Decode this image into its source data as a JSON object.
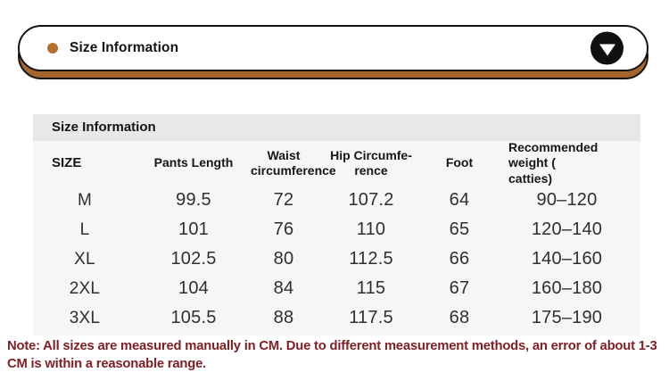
{
  "banner": {
    "title": "Size Information"
  },
  "table": {
    "section_title": "Size Information",
    "columns": {
      "size": "SIZE",
      "pants_length": "Pants Length",
      "waist": "Waist\ncircumference",
      "hip": "Hip Circumfe-\nrence",
      "foot": "Foot",
      "weight": "Recommended weight (\ncatties)"
    },
    "rows": [
      {
        "size": "M",
        "pants_length": "99.5",
        "waist": "72",
        "hip": "107.2",
        "foot": "64",
        "weight": "90–120"
      },
      {
        "size": "L",
        "pants_length": "101",
        "waist": "76",
        "hip": "110",
        "foot": "65",
        "weight": "120–140"
      },
      {
        "size": "XL",
        "pants_length": "102.5",
        "waist": "80",
        "hip": "112.5",
        "foot": "66",
        "weight": "140–160"
      },
      {
        "size": "2XL",
        "pants_length": "104",
        "waist": "84",
        "hip": "115",
        "foot": "67",
        "weight": "160–180"
      },
      {
        "size": "3XL",
        "pants_length": "105.5",
        "waist": "88",
        "hip": "117.5",
        "foot": "68",
        "weight": "175–190"
      }
    ]
  },
  "note": "Note: All sizes are measured manually in CM. Due to different measurement methods, an error of about 1-3 CM is within a reasonable range.",
  "colors": {
    "banner_shadow_brown": "#a5662e",
    "bullet_brown": "#b3702e",
    "band_gray": "#e8e8e6",
    "body_gray": "#f6f6f5",
    "note_red": "#7e2024"
  }
}
